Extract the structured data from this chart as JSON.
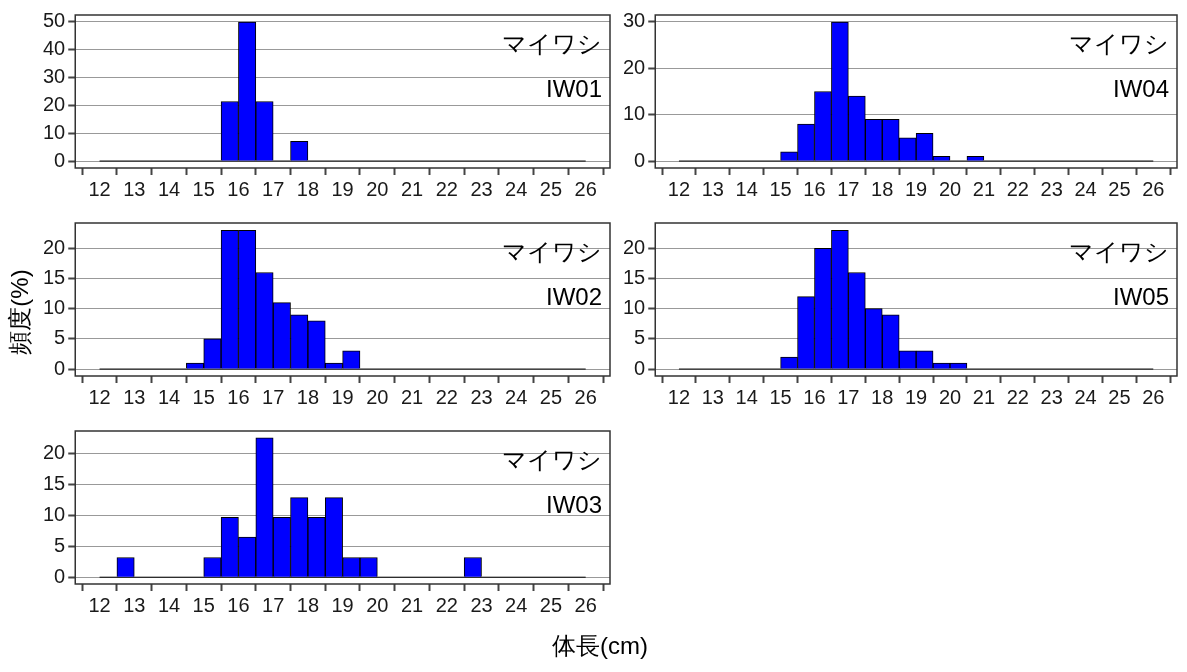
{
  "chart_data": [
    {
      "type": "histogram",
      "bins": [
        12,
        12.5,
        13,
        13.5,
        14,
        14.5,
        15,
        15.5,
        16,
        16.5,
        17,
        17.5,
        18,
        18.5,
        19,
        19.5,
        20,
        20.5,
        21,
        21.5,
        22,
        22.5,
        23,
        23.5,
        24,
        24.5,
        25,
        25.5,
        26
      ],
      "values": [
        0,
        0,
        0,
        0,
        0,
        0,
        0,
        21.4,
        50,
        21.4,
        0,
        7.1,
        0,
        0,
        0,
        0,
        0,
        0,
        0,
        0,
        0,
        0,
        0,
        0,
        0,
        0,
        0,
        0
      ],
      "color": "#0000ff",
      "xlim": [
        11.3,
        26.7
      ],
      "xticks": [
        12,
        13,
        14,
        15,
        16,
        17,
        18,
        19,
        20,
        21,
        22,
        23,
        24,
        25,
        26
      ],
      "ylim": [
        -2.5,
        52.5
      ],
      "yticks": [
        0,
        10,
        20,
        30,
        40,
        50
      ],
      "grid": "y",
      "annotations": [
        "マイワシ",
        "IW01"
      ]
    },
    {
      "type": "histogram",
      "bins": [
        12,
        12.5,
        13,
        13.5,
        14,
        14.5,
        15,
        15.5,
        16,
        16.5,
        17,
        17.5,
        18,
        18.5,
        19,
        19.5,
        20,
        20.5,
        21,
        21.5,
        22,
        22.5,
        23,
        23.5,
        24,
        24.5,
        25,
        25.5,
        26
      ],
      "values": [
        0,
        0,
        0,
        0,
        0,
        0,
        2,
        8,
        15,
        30,
        14,
        9,
        9,
        5,
        6,
        1,
        0,
        1,
        0,
        0,
        0,
        0,
        0,
        0,
        0,
        0,
        0,
        0
      ],
      "color": "#0000ff",
      "xlim": [
        11.3,
        26.7
      ],
      "xticks": [
        12,
        13,
        14,
        15,
        16,
        17,
        18,
        19,
        20,
        21,
        22,
        23,
        24,
        25,
        26
      ],
      "ylim": [
        -1.5,
        31.5
      ],
      "yticks": [
        0,
        10,
        20,
        30
      ],
      "grid": "y",
      "annotations": [
        "マイワシ",
        "IW04"
      ]
    },
    {
      "type": "histogram",
      "bins": [
        12,
        12.5,
        13,
        13.5,
        14,
        14.5,
        15,
        15.5,
        16,
        16.5,
        17,
        17.5,
        18,
        18.5,
        19,
        19.5,
        20,
        20.5,
        21,
        21.5,
        22,
        22.5,
        23,
        23.5,
        24,
        24.5,
        25,
        25.5,
        26
      ],
      "values": [
        0,
        0,
        0,
        0,
        0,
        1,
        5,
        23,
        23,
        16,
        11,
        9,
        8,
        1,
        3,
        0,
        0,
        0,
        0,
        0,
        0,
        0,
        0,
        0,
        0,
        0,
        0,
        0
      ],
      "color": "#0000ff",
      "xlim": [
        11.3,
        26.7
      ],
      "xticks": [
        12,
        13,
        14,
        15,
        16,
        17,
        18,
        19,
        20,
        21,
        22,
        23,
        24,
        25,
        26
      ],
      "ylim": [
        -1.15,
        24.2
      ],
      "yticks": [
        0,
        5,
        10,
        15,
        20
      ],
      "grid": "y",
      "ylabel": "頻度(%)",
      "annotations": [
        "マイワシ",
        "IW02"
      ]
    },
    {
      "type": "histogram",
      "bins": [
        12,
        12.5,
        13,
        13.5,
        14,
        14.5,
        15,
        15.5,
        16,
        16.5,
        17,
        17.5,
        18,
        18.5,
        19,
        19.5,
        20,
        20.5,
        21,
        21.5,
        22,
        22.5,
        23,
        23.5,
        24,
        24.5,
        25,
        25.5,
        26
      ],
      "values": [
        0,
        0,
        0,
        0,
        0,
        0,
        2,
        12,
        20,
        23,
        16,
        10,
        9,
        3,
        3,
        1,
        1,
        0,
        0,
        0,
        0,
        0,
        0,
        0,
        0,
        0,
        0,
        0
      ],
      "color": "#0000ff",
      "xlim": [
        11.3,
        26.7
      ],
      "xticks": [
        12,
        13,
        14,
        15,
        16,
        17,
        18,
        19,
        20,
        21,
        22,
        23,
        24,
        25,
        26
      ],
      "ylim": [
        -1.15,
        24.2
      ],
      "yticks": [
        0,
        5,
        10,
        15,
        20
      ],
      "grid": "y",
      "annotations": [
        "マイワシ",
        "IW05"
      ]
    },
    {
      "type": "histogram",
      "bins": [
        12,
        12.5,
        13,
        13.5,
        14,
        14.5,
        15,
        15.5,
        16,
        16.5,
        17,
        17.5,
        18,
        18.5,
        19,
        19.5,
        20,
        20.5,
        21,
        21.5,
        22,
        22.5,
        23,
        23.5,
        24,
        24.5,
        25,
        25.5,
        26
      ],
      "values": [
        0,
        3.2,
        0,
        0,
        0,
        0,
        3.2,
        9.7,
        6.5,
        22.6,
        9.7,
        12.9,
        9.7,
        12.9,
        3.2,
        3.2,
        0,
        0,
        0,
        0,
        0,
        3.2,
        0,
        0,
        0,
        0,
        0,
        0
      ],
      "color": "#0000ff",
      "xlim": [
        11.3,
        26.7
      ],
      "xticks": [
        12,
        13,
        14,
        15,
        16,
        17,
        18,
        19,
        20,
        21,
        22,
        23,
        24,
        25,
        26
      ],
      "ylim": [
        -1.1,
        23.7
      ],
      "yticks": [
        0,
        5,
        10,
        15,
        20
      ],
      "grid": "y",
      "xlabel": "体長(cm)",
      "annotations": [
        "マイワシ",
        "IW03"
      ]
    }
  ]
}
